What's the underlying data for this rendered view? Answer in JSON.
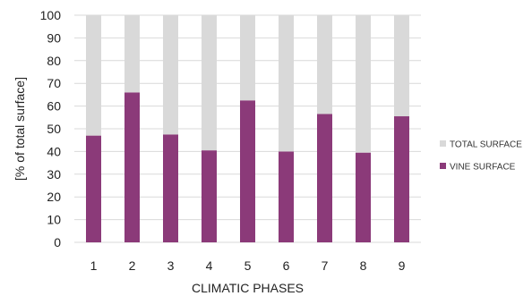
{
  "chart_data": {
    "type": "bar",
    "stacked": true,
    "categories": [
      "1",
      "2",
      "3",
      "4",
      "5",
      "6",
      "7",
      "8",
      "9"
    ],
    "series": [
      {
        "name": "VINE SURFACE",
        "color": "#8b3a79",
        "values": [
          47,
          66,
          47.5,
          40.5,
          62.5,
          40,
          56.5,
          39.5,
          55.5
        ]
      },
      {
        "name": "TOTAL SURFACE",
        "color": "#d9d9d9",
        "values": [
          53,
          34,
          52.5,
          59.5,
          37.5,
          60,
          43.5,
          60.5,
          44.5
        ]
      }
    ],
    "xlabel": "CLIMATIC PHASES",
    "ylabel": "[% of total surface]",
    "ylim": [
      0,
      100
    ],
    "yticks": [
      "0",
      "10",
      "20",
      "30",
      "40",
      "50",
      "60",
      "70",
      "80",
      "90",
      "100"
    ],
    "grid": true,
    "legend_position": "right",
    "legend_order": [
      "TOTAL SURFACE",
      "VINE SURFACE"
    ]
  }
}
